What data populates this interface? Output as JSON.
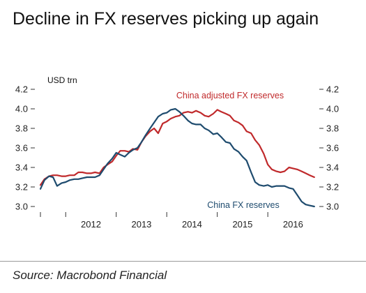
{
  "title": "Decline in FX reserves picking up again",
  "source": "Source: Macrobond Financial",
  "chart_data": {
    "type": "line",
    "unit_label": "USD trn",
    "ylim": [
      3.0,
      4.2
    ],
    "yticks": [
      3.0,
      3.2,
      3.4,
      3.6,
      3.8,
      4.0,
      4.2
    ],
    "ytick_labels": [
      "3.0",
      "3.2",
      "3.4",
      "3.6",
      "3.8",
      "4.0",
      "4.2"
    ],
    "xlim": [
      2011.5,
      2016.95
    ],
    "xticks": [
      2012,
      2013,
      2014,
      2015,
      2016
    ],
    "xtick_labels": [
      "2012",
      "2013",
      "2014",
      "2015",
      "2016"
    ],
    "grid": false,
    "legend": "inline labels",
    "series": [
      {
        "name": "China adjusted FX reserves",
        "color": "#c0292b",
        "label_position": "above",
        "x": [
          2011.5,
          2011.58,
          2011.67,
          2011.75,
          2011.83,
          2011.92,
          2012.0,
          2012.08,
          2012.17,
          2012.25,
          2012.33,
          2012.42,
          2012.5,
          2012.58,
          2012.67,
          2012.75,
          2012.83,
          2012.92,
          2013.0,
          2013.08,
          2013.17,
          2013.25,
          2013.33,
          2013.42,
          2013.5,
          2013.58,
          2013.67,
          2013.75,
          2013.83,
          2013.92,
          2014.0,
          2014.08,
          2014.17,
          2014.25,
          2014.33,
          2014.42,
          2014.5,
          2014.58,
          2014.67,
          2014.75,
          2014.83,
          2014.92,
          2015.0,
          2015.08,
          2015.17,
          2015.25,
          2015.33,
          2015.42,
          2015.5,
          2015.58,
          2015.67,
          2015.75,
          2015.83,
          2015.92,
          2016.0,
          2016.08,
          2016.17,
          2016.25,
          2016.33,
          2016.42,
          2016.5,
          2016.58,
          2016.67,
          2016.75,
          2016.83,
          2016.92
        ],
        "values": [
          3.22,
          3.28,
          3.31,
          3.32,
          3.32,
          3.31,
          3.31,
          3.32,
          3.32,
          3.35,
          3.35,
          3.34,
          3.34,
          3.35,
          3.34,
          3.4,
          3.43,
          3.46,
          3.52,
          3.57,
          3.57,
          3.56,
          3.59,
          3.58,
          3.66,
          3.72,
          3.77,
          3.8,
          3.75,
          3.85,
          3.87,
          3.9,
          3.92,
          3.93,
          3.96,
          3.97,
          3.96,
          3.98,
          3.96,
          3.93,
          3.92,
          3.95,
          3.99,
          3.97,
          3.95,
          3.93,
          3.88,
          3.86,
          3.83,
          3.77,
          3.75,
          3.68,
          3.63,
          3.54,
          3.43,
          3.38,
          3.36,
          3.35,
          3.36,
          3.4,
          3.39,
          3.38,
          3.36,
          3.34,
          3.32,
          3.3
        ]
      },
      {
        "name": "China FX reserves",
        "color": "#1e4b6e",
        "label_position": "below",
        "x": [
          2011.5,
          2011.58,
          2011.67,
          2011.75,
          2011.83,
          2011.92,
          2012.0,
          2012.08,
          2012.17,
          2012.25,
          2012.33,
          2012.42,
          2012.5,
          2012.58,
          2012.67,
          2012.75,
          2012.83,
          2012.92,
          2013.0,
          2013.08,
          2013.17,
          2013.25,
          2013.33,
          2013.42,
          2013.5,
          2013.58,
          2013.67,
          2013.75,
          2013.83,
          2013.92,
          2014.0,
          2014.08,
          2014.17,
          2014.25,
          2014.33,
          2014.42,
          2014.5,
          2014.58,
          2014.67,
          2014.75,
          2014.83,
          2014.92,
          2015.0,
          2015.08,
          2015.17,
          2015.25,
          2015.33,
          2015.42,
          2015.5,
          2015.58,
          2015.67,
          2015.75,
          2015.83,
          2015.92,
          2016.0,
          2016.08,
          2016.17,
          2016.25,
          2016.33,
          2016.42,
          2016.5,
          2016.58,
          2016.67,
          2016.75,
          2016.83,
          2016.92
        ],
        "values": [
          3.18,
          3.27,
          3.31,
          3.3,
          3.21,
          3.24,
          3.25,
          3.27,
          3.28,
          3.28,
          3.29,
          3.3,
          3.3,
          3.3,
          3.32,
          3.38,
          3.44,
          3.49,
          3.55,
          3.53,
          3.51,
          3.55,
          3.58,
          3.6,
          3.66,
          3.73,
          3.8,
          3.86,
          3.92,
          3.95,
          3.96,
          3.99,
          4.0,
          3.97,
          3.93,
          3.88,
          3.85,
          3.84,
          3.84,
          3.8,
          3.78,
          3.74,
          3.75,
          3.71,
          3.66,
          3.65,
          3.59,
          3.56,
          3.51,
          3.47,
          3.35,
          3.25,
          3.22,
          3.21,
          3.22,
          3.2,
          3.21,
          3.21,
          3.21,
          3.19,
          3.18,
          3.12,
          3.05,
          3.02,
          3.01,
          3.0
        ]
      }
    ]
  }
}
